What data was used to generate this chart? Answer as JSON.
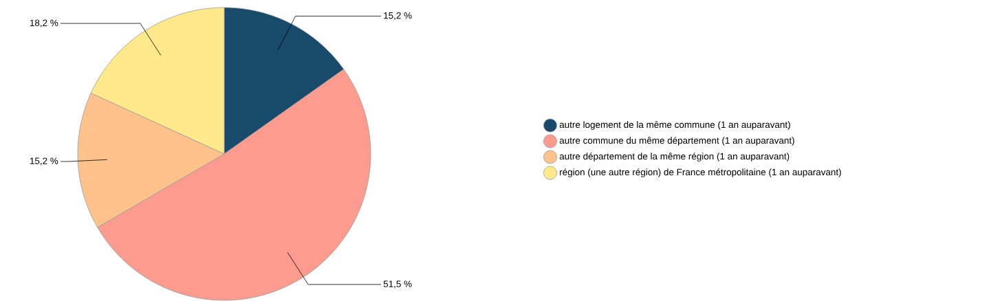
{
  "chart_data": {
    "type": "pie",
    "categories": [
      "autre logement de la même commune (1 an auparavant)",
      "autre commune du même département (1 an auparavant)",
      "autre département de la même région (1 an auparavant)",
      "région (une autre région) de France métropolitaine (1 an auparavant)"
    ],
    "values": [
      15.2,
      51.5,
      15.2,
      18.2
    ],
    "colors": [
      "#174a6b",
      "#fd9b8f",
      "#fec28a",
      "#ffe98b"
    ],
    "value_labels": [
      "15,2 %",
      "51,5 %",
      "15,2 %",
      "18,2 %"
    ],
    "legend": "right"
  }
}
